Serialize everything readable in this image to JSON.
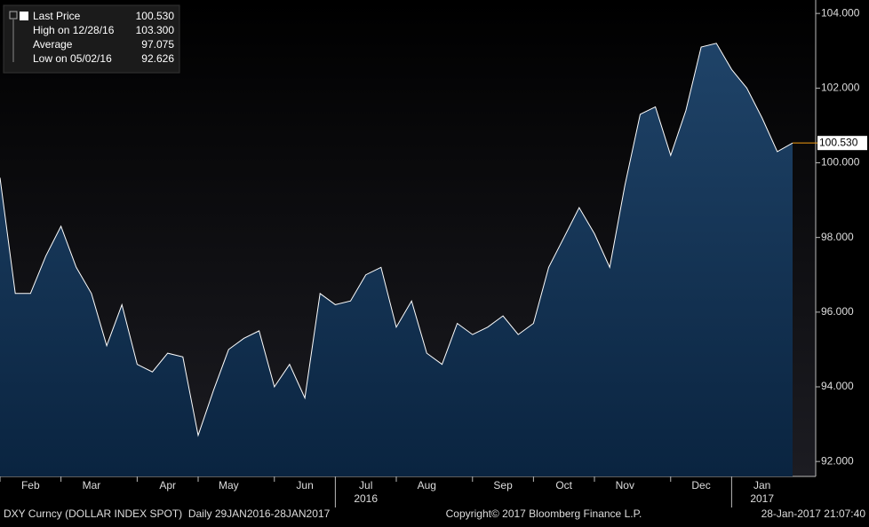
{
  "chart_data": {
    "type": "area",
    "series": [
      {
        "name": "Last Price",
        "color": "#ffffff",
        "values": [
          99.6,
          96.5,
          96.5,
          97.5,
          98.3,
          97.2,
          96.5,
          95.1,
          96.2,
          94.6,
          94.4,
          94.9,
          94.8,
          92.7,
          93.9,
          95.0,
          95.3,
          95.5,
          94.0,
          94.6,
          93.7,
          96.5,
          96.2,
          96.3,
          97.0,
          97.2,
          95.6,
          96.3,
          94.9,
          94.6,
          95.7,
          95.4,
          95.6,
          95.9,
          95.4,
          95.7,
          97.2,
          98.0,
          98.8,
          98.1,
          97.2,
          99.4,
          101.3,
          101.5,
          100.2,
          101.4,
          103.1,
          103.2,
          102.5,
          102.0,
          101.2,
          100.3,
          100.53
        ]
      }
    ],
    "categories": [
      null,
      null,
      "Feb",
      null,
      null,
      null,
      "Mar",
      null,
      null,
      null,
      null,
      "Apr",
      null,
      null,
      null,
      "May",
      null,
      null,
      null,
      null,
      "Jun",
      null,
      null,
      null,
      "Jul",
      null,
      null,
      null,
      "Aug",
      null,
      null,
      null,
      null,
      "Sep",
      null,
      null,
      null,
      "Oct",
      null,
      null,
      null,
      "Nov",
      null,
      null,
      null,
      null,
      "Dec",
      null,
      null,
      null,
      "Jan",
      null,
      null
    ],
    "year_categories": [
      null,
      null,
      null,
      null,
      null,
      null,
      null,
      null,
      null,
      null,
      null,
      null,
      null,
      null,
      null,
      null,
      null,
      null,
      null,
      null,
      null,
      null,
      null,
      null,
      "2016",
      null,
      null,
      null,
      null,
      null,
      null,
      null,
      null,
      null,
      null,
      null,
      null,
      null,
      null,
      null,
      null,
      null,
      null,
      null,
      null,
      null,
      null,
      null,
      null,
      null,
      "2017",
      null,
      null
    ],
    "ylim": [
      91.6,
      104.36
    ],
    "yticks": [
      {
        "value": 92,
        "label": "92.000"
      },
      {
        "value": 94,
        "label": "94.000"
      },
      {
        "value": 96,
        "label": "96.000"
      },
      {
        "value": 98,
        "label": "98.000"
      },
      {
        "value": 100,
        "label": "100.000"
      },
      {
        "value": 102,
        "label": "102.000"
      },
      {
        "value": 104,
        "label": "104.000"
      }
    ],
    "grid": false,
    "legend_stats": [
      {
        "label": "Last Price",
        "value": {
          "value": 100.53,
          "label": "100.530"
        }
      },
      {
        "label": "High on 12/28/16",
        "value": {
          "value": 103.3,
          "label": "103.300"
        }
      },
      {
        "label": "Average",
        "value": {
          "value": 97.075,
          "label": "97.075"
        }
      },
      {
        "label": "Low on 05/02/16",
        "value": {
          "value": 92.626,
          "label": "92.626"
        }
      }
    ],
    "footer_left": "DXY Curncy (DOLLAR INDEX SPOT)  Daily 29JAN2016-28JAN2017",
    "footer_center": "Copyright© 2017 Bloomberg Finance L.P.",
    "footer_right": "28-Jan-2017 21:07:40"
  }
}
